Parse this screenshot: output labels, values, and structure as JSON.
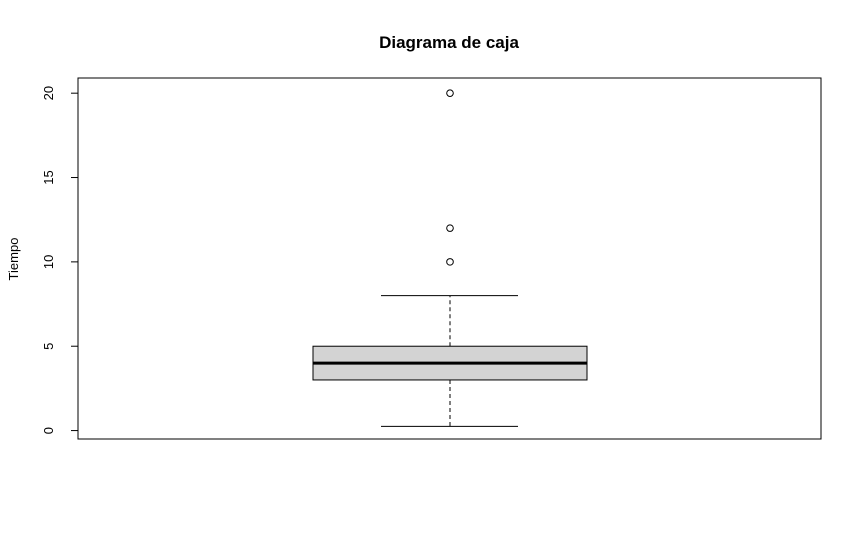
{
  "chart_data": {
    "type": "boxplot",
    "title": "Diagrama de caja",
    "xlabel": "",
    "ylabel": "Tiempo",
    "yticks": [
      0,
      5,
      10,
      15,
      20
    ],
    "ylim": [
      -0.5,
      20.9
    ],
    "grid": false,
    "box": {
      "whisker_low": 0.25,
      "q1": 3,
      "median": 4,
      "q3": 5,
      "whisker_high": 8,
      "outliers": [
        10,
        12,
        20
      ]
    },
    "colors": {
      "box_fill": "#d3d3d3",
      "stroke": "#000000"
    }
  }
}
